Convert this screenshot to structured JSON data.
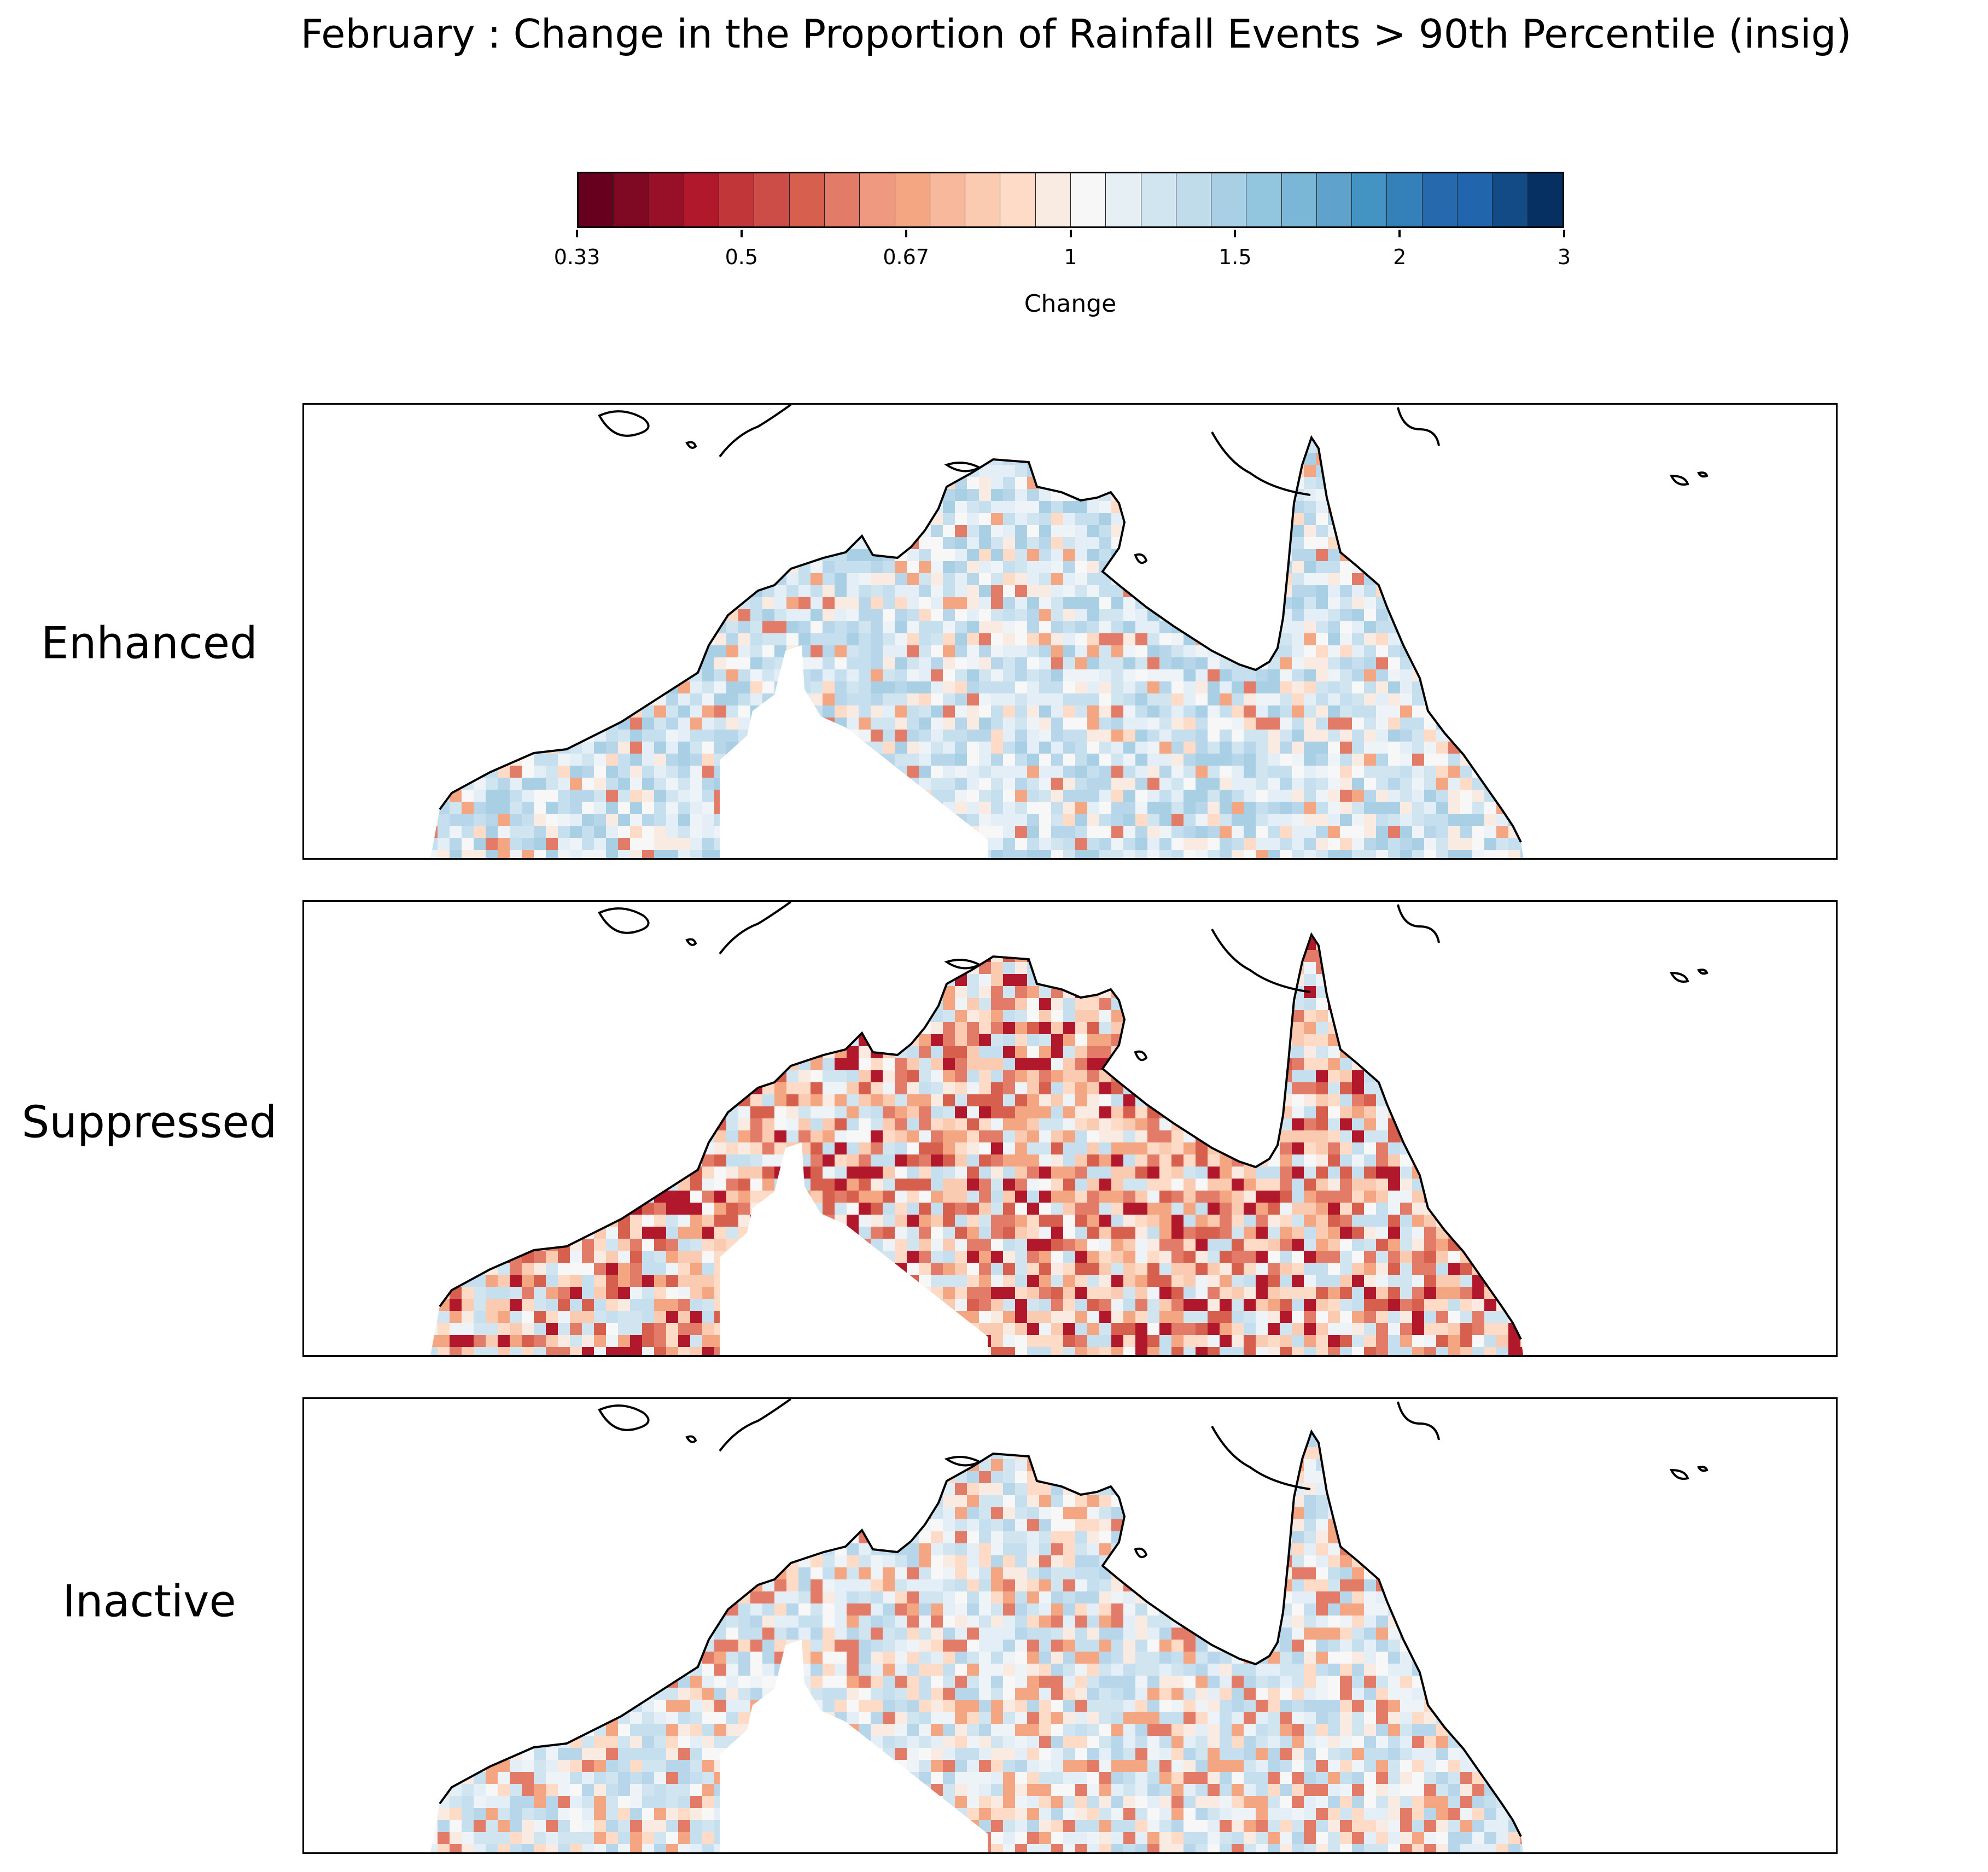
{
  "title": "February : Change in the Proportion of Rainfall Events > 90th Percentile (insig)",
  "colorbar": {
    "label": "Change",
    "ticks": [
      "0.33",
      "0.5",
      "0.67",
      "1",
      "1.5",
      "2",
      "3"
    ],
    "colors": [
      "#67001f",
      "#7f0823",
      "#981027",
      "#b2182b",
      "#c13639",
      "#cc4c48",
      "#d6604d",
      "#e27b67",
      "#ee9980",
      "#f4a582",
      "#f7b89c",
      "#facab1",
      "#fddbc7",
      "#f9ebe2",
      "#f7f7f7",
      "#e6eff4",
      "#d1e5f0",
      "#c0dceb",
      "#a8cfe4",
      "#92c5de",
      "#7ab6d6",
      "#5fa3cd",
      "#4393c3",
      "#3480b9",
      "#2669ad",
      "#2166ac",
      "#134b87",
      "#053061"
    ]
  },
  "panels": [
    {
      "label": "Enhanced",
      "tone": "mostly-blue"
    },
    {
      "label": "Suppressed",
      "tone": "mostly-red"
    },
    {
      "label": "Inactive",
      "tone": "mixed"
    }
  ]
}
